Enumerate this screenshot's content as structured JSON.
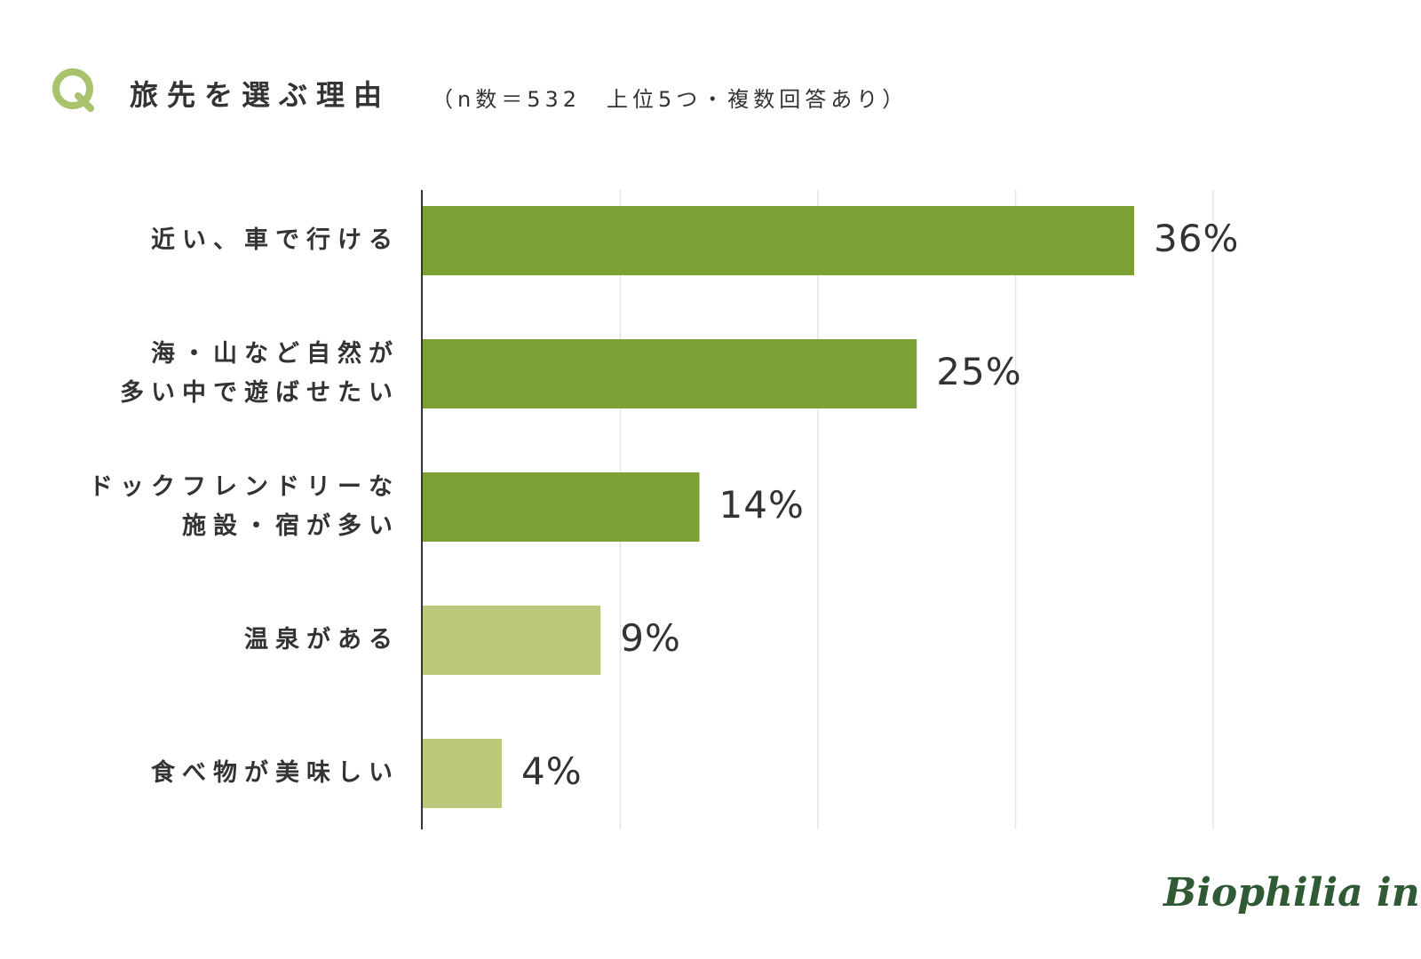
{
  "header": {
    "q_icon": "Q",
    "title": "旅先を選ぶ理由",
    "subtitle": "（n数＝532　上位5つ・複数回答あり）"
  },
  "colors": {
    "accent": "#a9c26e",
    "bar_dark": "#7da034",
    "bar_light": "#bac87a",
    "grid": "#e6e6e6",
    "axis": "#333333",
    "logo": "#2f5a34"
  },
  "chart_data": {
    "type": "bar",
    "orientation": "horizontal",
    "categories": [
      [
        "近い、車で行ける"
      ],
      [
        "海・山など自然が",
        "多い中で遊ばせたい"
      ],
      [
        "ドックフレンドリーな",
        "施設・宿が多い"
      ],
      [
        "温泉がある"
      ],
      [
        "食べ物が美味しい"
      ]
    ],
    "values": [
      36,
      25,
      14,
      9,
      4
    ],
    "value_labels": [
      "36%",
      "25%",
      "14%",
      "9%",
      "4%"
    ],
    "bar_shade": [
      "dark",
      "dark",
      "dark",
      "light",
      "light"
    ],
    "xlim": [
      0,
      40
    ],
    "grid": true
  },
  "logo": "Biophilia inc."
}
